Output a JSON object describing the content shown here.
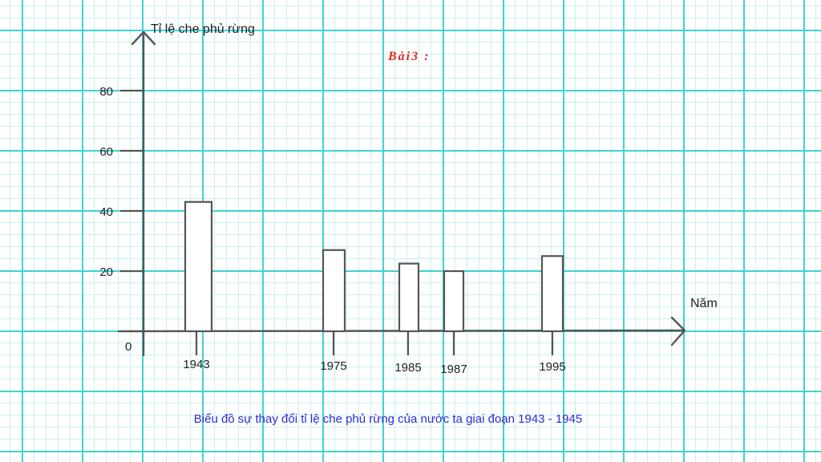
{
  "chart_data": {
    "type": "bar",
    "title": "Bài3 :",
    "caption": "Biểu đồ sự thay đổi tỉ lệ che phủ rừng của nước ta giai đoạn 1943 - 1945",
    "ylabel": "Tỉ lệ che phủ rừng",
    "xlabel": "Năm",
    "origin_label": "0",
    "ylim": [
      0,
      100
    ],
    "yticks": [
      20,
      40,
      60,
      80
    ],
    "categories": [
      "1943",
      "1975",
      "1985",
      "1987",
      "1995"
    ],
    "values": [
      43,
      27,
      22.5,
      20,
      25
    ],
    "grid": true,
    "colors": {
      "axis": "#555555",
      "title": "#e02a2a",
      "caption": "#2b2bd6",
      "grid_major": "#3fd3d3",
      "grid_minor": "#c9f0f0"
    }
  }
}
